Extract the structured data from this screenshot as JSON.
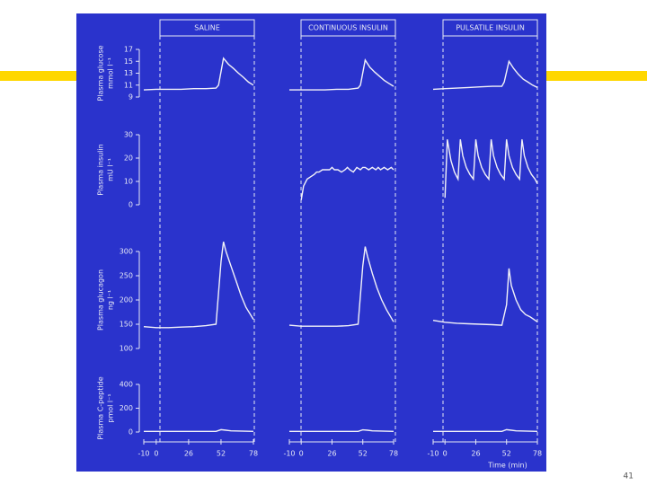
{
  "panel_titles": [
    "SALINE",
    "CONTINUOUS INSULIN",
    "PULSATILE INSULIN"
  ],
  "x_label": "Time (min)",
  "xlim": [
    -10,
    78
  ],
  "xticks": [
    -10,
    0,
    26,
    52,
    78
  ],
  "slide_number": "41",
  "chart_data": [
    {
      "type": "line",
      "y_label": [
        "Plasma glucose",
        "mmol l⁻¹"
      ],
      "ylim": [
        9,
        17
      ],
      "yticks": [
        9,
        11,
        13,
        15,
        17
      ],
      "x": [
        -10,
        0,
        10,
        20,
        30,
        40,
        48,
        50,
        54,
        58,
        62,
        66,
        70,
        74,
        78
      ],
      "series": [
        {
          "color": "#f2f2f8",
          "values": [
            10.2,
            10.3,
            10.3,
            10.3,
            10.4,
            10.4,
            10.5,
            11,
            15.5,
            14.5,
            13.8,
            13,
            12.3,
            11.5,
            11
          ]
        },
        {
          "color": "#f2f2f8",
          "values": [
            10.2,
            10.2,
            10.2,
            10.2,
            10.3,
            10.3,
            10.5,
            11,
            15.2,
            14,
            13.2,
            12.5,
            11.8,
            11.3,
            10.8
          ]
        },
        {
          "color": "#f2f2f8",
          "values": [
            10.3,
            10.4,
            10.5,
            10.6,
            10.7,
            10.8,
            10.8,
            11.5,
            15,
            13.8,
            12.8,
            12,
            11.5,
            11,
            10.6
          ]
        }
      ]
    },
    {
      "type": "line",
      "y_label": [
        "Plasma insulin",
        "mU l⁻¹"
      ],
      "ylim": [
        0,
        30
      ],
      "yticks": [
        0,
        10,
        20,
        30
      ],
      "x": [
        0,
        2,
        5,
        8,
        11,
        13,
        15,
        18,
        21,
        24,
        26,
        28,
        31,
        34,
        37,
        39,
        41,
        44,
        47,
        50,
        52,
        54,
        57,
        60,
        63,
        65,
        67,
        70,
        73,
        76,
        78
      ],
      "series": [
        {
          "color": "#f2f2f8",
          "values": [
            null,
            null,
            null,
            null,
            null,
            null,
            null,
            null,
            null,
            null,
            null,
            null,
            null,
            null,
            null,
            null,
            null,
            null,
            null,
            null,
            null,
            null,
            null,
            null,
            null,
            null,
            null,
            null,
            null,
            null,
            null
          ]
        },
        {
          "color": "#f2f2f8",
          "values": [
            2,
            8,
            11,
            12,
            13,
            14,
            14,
            15,
            15,
            15,
            16,
            15,
            15,
            14,
            15,
            16,
            15,
            14,
            16,
            15,
            16,
            16,
            15,
            16,
            15,
            16,
            15,
            16,
            15,
            16,
            15
          ]
        },
        {
          "color": "#f2f2f8",
          "values": [
            3,
            28,
            19,
            14,
            11,
            28,
            21,
            16,
            13,
            11,
            28,
            21,
            16,
            13,
            11,
            28,
            21,
            16,
            13,
            11,
            28,
            21,
            16,
            13,
            11,
            28,
            21,
            16,
            13,
            11,
            9
          ]
        }
      ]
    },
    {
      "type": "line",
      "y_label": [
        "Plasma glucagon",
        "ng l⁻¹"
      ],
      "ylim": [
        100,
        300
      ],
      "yticks": [
        100,
        150,
        200,
        250,
        300
      ],
      "x": [
        -10,
        0,
        10,
        20,
        30,
        40,
        48,
        52,
        54,
        56,
        60,
        64,
        68,
        72,
        78
      ],
      "series": [
        {
          "color": "#f2f2f8",
          "values": [
            145,
            143,
            143,
            144,
            145,
            147,
            150,
            280,
            320,
            300,
            270,
            240,
            210,
            185,
            160
          ]
        },
        {
          "color": "#f2f2f8",
          "values": [
            148,
            146,
            146,
            146,
            146,
            147,
            150,
            270,
            310,
            290,
            255,
            225,
            200,
            180,
            155
          ]
        },
        {
          "color": "#f2f2f8",
          "values": [
            158,
            154,
            152,
            151,
            150,
            149,
            148,
            190,
            265,
            230,
            200,
            180,
            170,
            165,
            155
          ]
        }
      ]
    },
    {
      "type": "line",
      "y_label": [
        "Plasma C-peptide",
        "pmol l⁻¹"
      ],
      "ylim": [
        0,
        400
      ],
      "yticks": [
        0,
        200,
        400
      ],
      "x": [
        -10,
        0,
        26,
        48,
        52,
        56,
        60,
        78
      ],
      "series": [
        {
          "color": "#f2f2f8",
          "values": [
            5,
            5,
            5,
            5,
            20,
            15,
            10,
            5
          ]
        },
        {
          "color": "#f2f2f8",
          "values": [
            5,
            5,
            5,
            5,
            18,
            15,
            10,
            5
          ]
        },
        {
          "color": "#f2f2f8",
          "values": [
            5,
            5,
            5,
            5,
            20,
            15,
            10,
            5
          ]
        }
      ]
    }
  ]
}
